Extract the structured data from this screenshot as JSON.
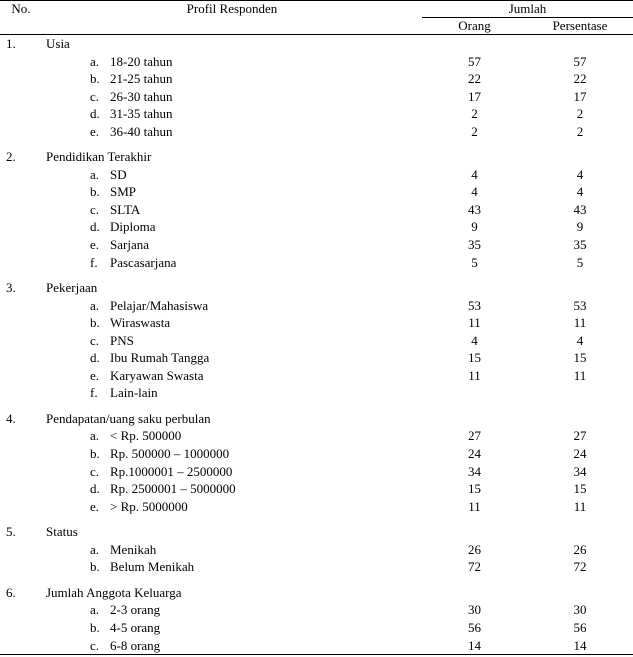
{
  "header": {
    "no": "No.",
    "profile": "Profil Responden",
    "jumlah": "Jumlah",
    "orang": "Orang",
    "persentase": "Persentase"
  },
  "sections": [
    {
      "num": "1.",
      "title": "Usia",
      "items": [
        {
          "letter": "a.",
          "label": "18-20 tahun",
          "orang": "57",
          "persen": "57"
        },
        {
          "letter": "b.",
          "label": "21-25 tahun",
          "orang": "22",
          "persen": "22"
        },
        {
          "letter": "c.",
          "label": "26-30 tahun",
          "orang": "17",
          "persen": "17"
        },
        {
          "letter": "d.",
          "label": "31-35 tahun",
          "orang": "2",
          "persen": "2"
        },
        {
          "letter": "e.",
          "label": "36-40 tahun",
          "orang": "2",
          "persen": "2"
        }
      ]
    },
    {
      "num": "2.",
      "title": "Pendidikan Terakhir",
      "items": [
        {
          "letter": "a.",
          "label": "SD",
          "orang": "4",
          "persen": "4"
        },
        {
          "letter": "b.",
          "label": "SMP",
          "orang": "4",
          "persen": "4"
        },
        {
          "letter": "c.",
          "label": "SLTA",
          "orang": "43",
          "persen": "43"
        },
        {
          "letter": "d.",
          "label": "Diploma",
          "orang": "9",
          "persen": "9"
        },
        {
          "letter": "e.",
          "label": "Sarjana",
          "orang": "35",
          "persen": "35"
        },
        {
          "letter": "f.",
          "label": "Pascasarjana",
          "orang": "5",
          "persen": "5"
        }
      ]
    },
    {
      "num": "3.",
      "title": "Pekerjaan",
      "items": [
        {
          "letter": "a.",
          "label": "Pelajar/Mahasiswa",
          "orang": "53",
          "persen": "53"
        },
        {
          "letter": "b.",
          "label": "Wiraswasta",
          "orang": "11",
          "persen": "11"
        },
        {
          "letter": "c.",
          "label": "PNS",
          "orang": "4",
          "persen": "4"
        },
        {
          "letter": "d.",
          "label": "Ibu Rumah Tangga",
          "orang": "15",
          "persen": "15"
        },
        {
          "letter": "e.",
          "label": "Karyawan Swasta",
          "orang": "11",
          "persen": "11"
        },
        {
          "letter": "f.",
          "label": "Lain-lain",
          "orang": "",
          "persen": ""
        }
      ]
    },
    {
      "num": "4.",
      "title": "Pendapatan/uang saku perbulan",
      "items": [
        {
          "letter": "a.",
          "label": "< Rp. 500000",
          "orang": "27",
          "persen": "27"
        },
        {
          "letter": "b.",
          "label": "Rp. 500000 – 1000000",
          "orang": "24",
          "persen": "24"
        },
        {
          "letter": "c.",
          "label": "Rp.1000001 – 2500000",
          "orang": "34",
          "persen": "34"
        },
        {
          "letter": "d.",
          "label": "Rp. 2500001 – 5000000",
          "orang": "15",
          "persen": "15"
        },
        {
          "letter": "e.",
          "label": "> Rp. 5000000",
          "orang": "11",
          "persen": "11"
        }
      ]
    },
    {
      "num": "5.",
      "title": "Status",
      "items": [
        {
          "letter": "a.",
          "label": "Menikah",
          "orang": "26",
          "persen": "26"
        },
        {
          "letter": "b.",
          "label": "Belum Menikah",
          "orang": "72",
          "persen": "72"
        }
      ]
    },
    {
      "num": "6.",
      "title": "Jumlah Anggota Keluarga",
      "items": [
        {
          "letter": "a.",
          "label": "2-3 orang",
          "orang": "30",
          "persen": "30"
        },
        {
          "letter": "b.",
          "label": "4-5 orang",
          "orang": "56",
          "persen": "56"
        },
        {
          "letter": "c.",
          "label": "6-8 orang",
          "orang": "14",
          "persen": "14"
        }
      ]
    }
  ]
}
